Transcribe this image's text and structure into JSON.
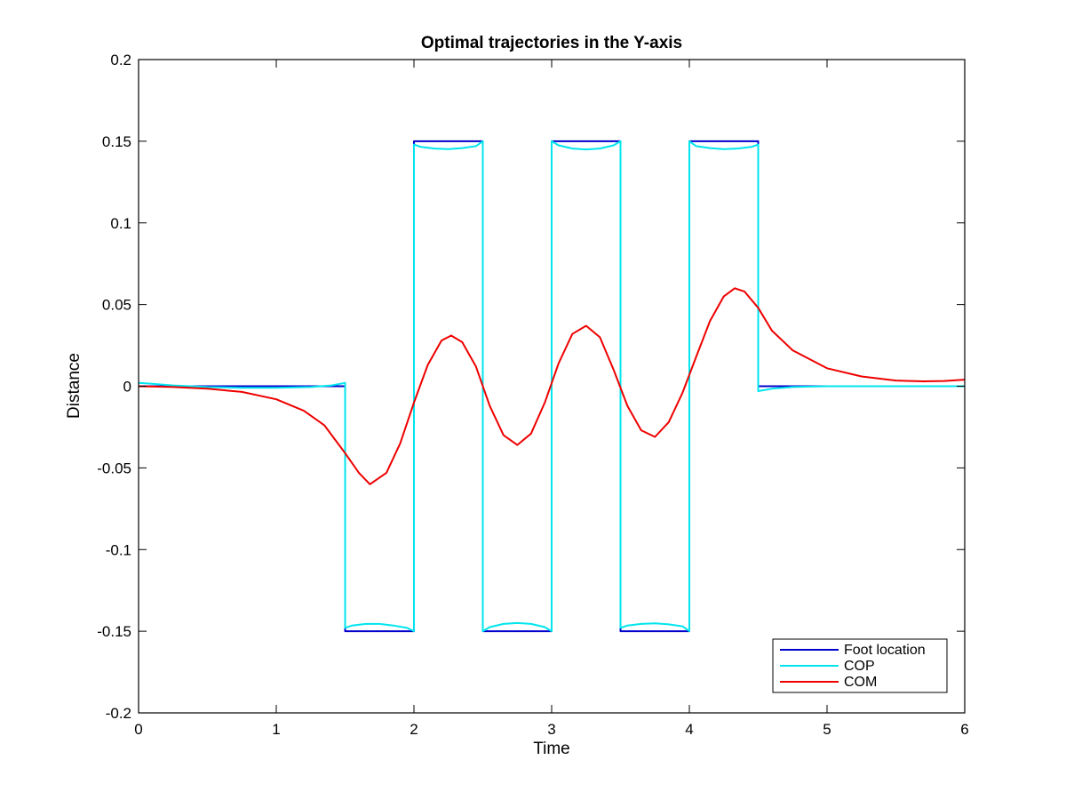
{
  "chart_data": {
    "type": "line",
    "title": "Optimal trajectories in the Y-axis",
    "xlabel": "Time",
    "ylabel": "Distance",
    "xlim": [
      0,
      6
    ],
    "ylim": [
      -0.2,
      0.2
    ],
    "xticks": [
      0,
      1,
      2,
      3,
      4,
      5,
      6
    ],
    "xtick_labels": [
      "0",
      "1",
      "2",
      "3",
      "4",
      "5",
      "6"
    ],
    "yticks": [
      -0.2,
      -0.15,
      -0.1,
      -0.05,
      0,
      0.05,
      0.1,
      0.15,
      0.2
    ],
    "ytick_labels": [
      "-0.2",
      "-0.15",
      "-0.1",
      "-0.05",
      "0",
      "0.05",
      "0.1",
      "0.15",
      "0.2"
    ],
    "grid": false,
    "legend_position": "bottom-right",
    "series": [
      {
        "name": "Foot location",
        "color": "#0000cc",
        "x": [
          0,
          1.5,
          1.5,
          2.0,
          2.0,
          2.5,
          2.5,
          3.0,
          3.0,
          3.5,
          3.5,
          4.0,
          4.0,
          4.5,
          4.5,
          6.0
        ],
        "y": [
          0,
          0,
          -0.15,
          -0.15,
          0.15,
          0.15,
          -0.15,
          -0.15,
          0.15,
          0.15,
          -0.15,
          -0.15,
          0.15,
          0.15,
          0,
          0
        ]
      },
      {
        "name": "COP",
        "color": "#00e5ee",
        "x": [
          0,
          0.1,
          0.25,
          0.5,
          0.75,
          1.0,
          1.25,
          1.4,
          1.5,
          1.5,
          1.55,
          1.65,
          1.75,
          1.85,
          1.95,
          2.0,
          2.0,
          2.05,
          2.15,
          2.25,
          2.35,
          2.45,
          2.5,
          2.5,
          2.55,
          2.65,
          2.75,
          2.85,
          2.95,
          3.0,
          3.0,
          3.05,
          3.15,
          3.25,
          3.35,
          3.45,
          3.5,
          3.5,
          3.55,
          3.65,
          3.75,
          3.85,
          3.95,
          4.0,
          4.0,
          4.05,
          4.15,
          4.25,
          4.35,
          4.45,
          4.5,
          4.5,
          4.6,
          4.75,
          5.0,
          5.5,
          6.0
        ],
        "y": [
          0.002,
          0.0015,
          0.0005,
          -0.0005,
          -0.001,
          -0.001,
          -0.0005,
          0.0005,
          0.002,
          -0.148,
          -0.1465,
          -0.1455,
          -0.1455,
          -0.1465,
          -0.148,
          -0.15,
          0.148,
          0.1465,
          0.1455,
          0.1452,
          0.1458,
          0.147,
          0.15,
          -0.15,
          -0.1475,
          -0.1455,
          -0.145,
          -0.1455,
          -0.1475,
          -0.15,
          0.15,
          0.1475,
          0.1455,
          0.145,
          0.1455,
          0.1475,
          0.15,
          -0.148,
          -0.1465,
          -0.1455,
          -0.1452,
          -0.1458,
          -0.147,
          -0.15,
          0.15,
          0.147,
          0.1458,
          0.1452,
          0.1455,
          0.1465,
          0.148,
          -0.003,
          -0.0015,
          -0.0005,
          0,
          0,
          0
        ]
      },
      {
        "name": "COM",
        "color": "#ee0000",
        "x": [
          0,
          0.25,
          0.5,
          0.75,
          1.0,
          1.2,
          1.35,
          1.5,
          1.6,
          1.68,
          1.8,
          1.9,
          2.0,
          2.1,
          2.2,
          2.27,
          2.35,
          2.45,
          2.55,
          2.65,
          2.75,
          2.85,
          2.95,
          3.05,
          3.15,
          3.25,
          3.35,
          3.45,
          3.55,
          3.65,
          3.75,
          3.85,
          3.95,
          4.05,
          4.15,
          4.25,
          4.33,
          4.4,
          4.5,
          4.6,
          4.75,
          5.0,
          5.25,
          5.5,
          5.7,
          5.85,
          6.0
        ],
        "y": [
          0,
          -0.0005,
          -0.0015,
          -0.0035,
          -0.008,
          -0.015,
          -0.024,
          -0.041,
          -0.053,
          -0.06,
          -0.053,
          -0.035,
          -0.01,
          0.013,
          0.028,
          0.031,
          0.027,
          0.012,
          -0.012,
          -0.03,
          -0.036,
          -0.029,
          -0.01,
          0.014,
          0.032,
          0.037,
          0.03,
          0.01,
          -0.012,
          -0.027,
          -0.031,
          -0.022,
          -0.004,
          0.018,
          0.04,
          0.055,
          0.06,
          0.058,
          0.048,
          0.034,
          0.022,
          0.011,
          0.006,
          0.0035,
          0.003,
          0.0032,
          0.004
        ]
      }
    ]
  }
}
